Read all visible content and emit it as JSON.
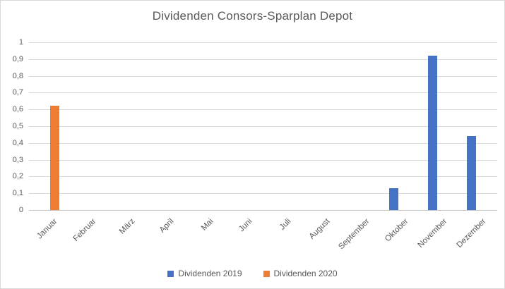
{
  "chart_data": {
    "type": "bar",
    "title": "Dividenden Consors-Sparplan Depot",
    "categories": [
      "Januar",
      "Februar",
      "März",
      "April",
      "Mai",
      "Juni",
      "Juli",
      "August",
      "September",
      "Oktober",
      "November",
      "Dezember"
    ],
    "series": [
      {
        "name": "Dividenden 2019",
        "color": "#4472C4",
        "values": [
          0,
          0,
          0,
          0,
          0,
          0,
          0,
          0,
          0,
          0.13,
          0.92,
          0.44
        ]
      },
      {
        "name": "Dividenden 2020",
        "color": "#ED7D31",
        "values": [
          0.62,
          0,
          0,
          0,
          0,
          0,
          0,
          0,
          0,
          0,
          0,
          0
        ]
      }
    ],
    "xlabel": "",
    "ylabel": "",
    "ylim": [
      0,
      1
    ],
    "ytick_step": 0.1,
    "ytick_labels": [
      "0",
      "0,1",
      "0,2",
      "0,3",
      "0,4",
      "0,5",
      "0,6",
      "0,7",
      "0,8",
      "0,9",
      "1"
    ],
    "grid": true,
    "legend_position": "bottom",
    "x_label_rotation_deg": -45
  }
}
